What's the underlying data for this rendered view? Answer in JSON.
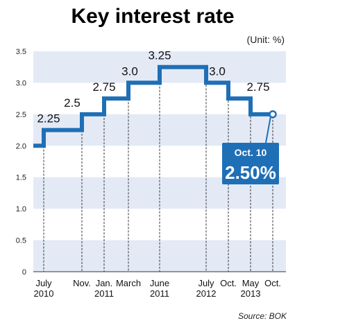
{
  "chart_data": {
    "type": "line",
    "title": "Key interest rate",
    "unit": "(Unit: %)",
    "source": "Source: BOK",
    "ylim": [
      0,
      3.5
    ],
    "y_ticks": [
      "0",
      "0.5",
      "1.0",
      "1.5",
      "2.0",
      "2.5",
      "3.0",
      "3.5"
    ],
    "y_tick_values": [
      0,
      0.5,
      1.0,
      1.5,
      2.0,
      2.5,
      3.0,
      3.5
    ],
    "x_ticks": [
      {
        "label": [
          "July",
          "2010"
        ],
        "date": "2010-07"
      },
      {
        "label": [
          "Nov."
        ],
        "date": "2010-11"
      },
      {
        "label": [
          "Jan.",
          "2011"
        ],
        "date": "2011-01"
      },
      {
        "label": [
          "March"
        ],
        "date": "2011-03"
      },
      {
        "label": [
          "June",
          "2011"
        ],
        "date": "2011-06"
      },
      {
        "label": [
          "July",
          "2012"
        ],
        "date": "2012-07"
      },
      {
        "label": [
          "Oct."
        ],
        "date": "2012-10"
      },
      {
        "label": [
          "May",
          "2013"
        ],
        "date": "2013-05"
      },
      {
        "label": [
          "Oct."
        ],
        "date": "2013-10"
      }
    ],
    "series": [
      {
        "steps": [
          {
            "date": "2010-07",
            "value": 2.25,
            "label": "2.25"
          },
          {
            "date": "2010-11",
            "value": 2.5,
            "label": "2.5"
          },
          {
            "date": "2011-01",
            "value": 2.75,
            "label": "2.75"
          },
          {
            "date": "2011-03",
            "value": 3.0,
            "label": "3.0"
          },
          {
            "date": "2011-06",
            "value": 3.25,
            "label": "3.25"
          },
          {
            "date": "2012-07",
            "value": 3.0,
            "label": "3.0"
          },
          {
            "date": "2012-10",
            "value": 2.75,
            "label": "2.75"
          },
          {
            "date": "2013-05",
            "value": 2.5,
            "label": ""
          },
          {
            "date": "2013-10",
            "value": 2.5,
            "label": ""
          }
        ],
        "start_value": 2.0
      }
    ],
    "callout": {
      "date": "Oct. 10",
      "value": "2.50%",
      "numeric": 2.5
    },
    "grid": "alternating horizontal bands",
    "colors": {
      "line": "#1f6fb6",
      "band": "#e3eaf6",
      "callout": "#1f6fb6"
    }
  }
}
